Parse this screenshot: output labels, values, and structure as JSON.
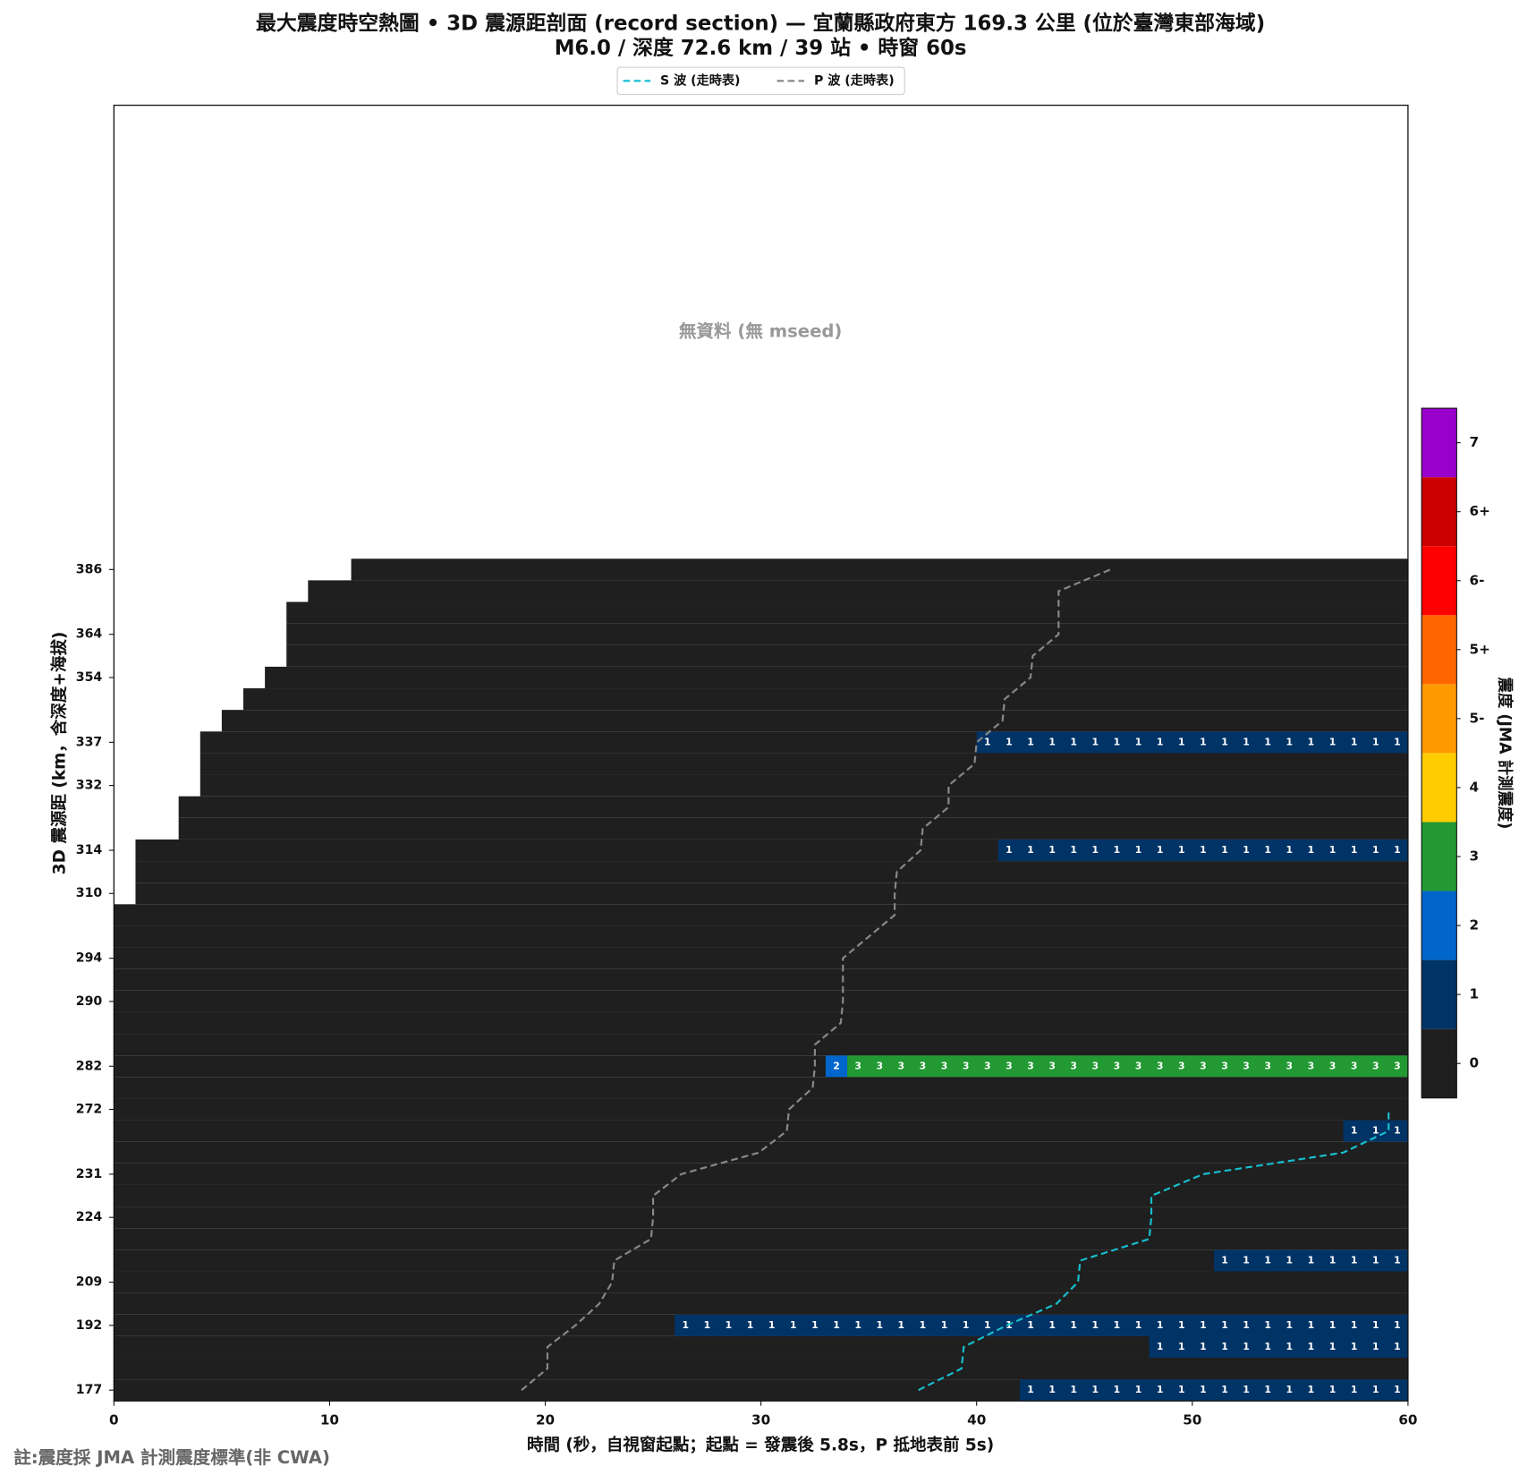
{
  "chart_data": {
    "type": "heatmap",
    "title": "最大震度時空熱圖 • 3D 震源距剖面 (record section) — 宜蘭縣政府東方  169.3  公里 (位於臺灣東部海域)",
    "subtitle": "M6.0 / 深度 72.6 km / 39 站 • 時窗 60s",
    "x_label": "時間 (秒，自視窗起點；起點 = 發震後 5.8s，P 抵地表前 5s)",
    "y_label": "3D 震源距 (km，含深度+海拔)",
    "annotation": "無資料 (無 mseed)",
    "note": "註:震度採 JMA 計測震度標準(非 CWA)",
    "xlim": [
      0,
      60
    ],
    "xticks": [
      0,
      10,
      20,
      30,
      40,
      50,
      60
    ],
    "ylim": [
      -0.5,
      59.5
    ],
    "rows": [
      {
        "label": "177",
        "start": 0,
        "runs": [
          {
            "from": 42,
            "to": 60,
            "value": 1
          }
        ]
      },
      {
        "label": null,
        "start": 0,
        "runs": []
      },
      {
        "label": null,
        "start": 0,
        "runs": [
          {
            "from": 48,
            "to": 60,
            "value": 1
          }
        ]
      },
      {
        "label": "192",
        "start": 0,
        "runs": [
          {
            "from": 26,
            "to": 60,
            "value": 1
          }
        ]
      },
      {
        "label": null,
        "start": 0,
        "runs": []
      },
      {
        "label": "209",
        "start": 0,
        "runs": []
      },
      {
        "label": null,
        "start": 0,
        "runs": [
          {
            "from": 51,
            "to": 60,
            "value": 1
          }
        ]
      },
      {
        "label": null,
        "start": 0,
        "runs": []
      },
      {
        "label": "224",
        "start": 0,
        "runs": []
      },
      {
        "label": null,
        "start": 0,
        "runs": []
      },
      {
        "label": "231",
        "start": 0,
        "runs": []
      },
      {
        "label": null,
        "start": 0,
        "runs": []
      },
      {
        "label": null,
        "start": 0,
        "runs": [
          {
            "from": 57,
            "to": 60,
            "value": 1
          }
        ]
      },
      {
        "label": "272",
        "start": 0,
        "runs": []
      },
      {
        "label": null,
        "start": 0,
        "runs": []
      },
      {
        "label": "282",
        "start": 0,
        "runs": [
          {
            "from": 33,
            "to": 34,
            "value": 2
          },
          {
            "from": 34,
            "to": 60,
            "value": 3
          }
        ]
      },
      {
        "label": null,
        "start": 0,
        "runs": []
      },
      {
        "label": null,
        "start": 0,
        "runs": []
      },
      {
        "label": "290",
        "start": 0,
        "runs": []
      },
      {
        "label": null,
        "start": 0,
        "runs": []
      },
      {
        "label": "294",
        "start": 0,
        "runs": []
      },
      {
        "label": null,
        "start": 0,
        "runs": []
      },
      {
        "label": null,
        "start": 0,
        "runs": []
      },
      {
        "label": "310",
        "start": 1,
        "runs": []
      },
      {
        "label": null,
        "start": 1,
        "runs": []
      },
      {
        "label": "314",
        "start": 1,
        "runs": [
          {
            "from": 41,
            "to": 60,
            "value": 1
          }
        ]
      },
      {
        "label": null,
        "start": 3,
        "runs": []
      },
      {
        "label": null,
        "start": 3,
        "runs": []
      },
      {
        "label": "332",
        "start": 4,
        "runs": []
      },
      {
        "label": null,
        "start": 4,
        "runs": []
      },
      {
        "label": "337",
        "start": 4,
        "runs": [
          {
            "from": 40,
            "to": 60,
            "value": 1
          }
        ]
      },
      {
        "label": null,
        "start": 5,
        "runs": []
      },
      {
        "label": null,
        "start": 6,
        "runs": []
      },
      {
        "label": "354",
        "start": 7,
        "runs": []
      },
      {
        "label": null,
        "start": 8,
        "runs": []
      },
      {
        "label": "364",
        "start": 8,
        "runs": []
      },
      {
        "label": null,
        "start": 8,
        "runs": []
      },
      {
        "label": null,
        "start": 9,
        "runs": []
      },
      {
        "label": "386",
        "start": 11,
        "runs": []
      }
    ],
    "series": [
      {
        "name": "S 波 (走時表)",
        "color": "#17becf",
        "values": [
          37.3,
          39.3,
          39.4,
          41.4,
          43.7,
          44.7,
          44.8,
          48.0,
          48.1,
          48.1,
          50.5,
          57.0,
          59.1,
          59.1,
          null,
          null,
          null,
          null,
          null,
          null,
          null,
          null,
          null,
          null,
          null,
          null,
          null,
          null,
          null,
          null,
          null,
          null,
          null,
          null,
          null,
          null,
          null,
          null,
          null
        ]
      },
      {
        "name": "P 波 (走時表)",
        "color": "#888888",
        "values": [
          18.9,
          20.1,
          20.1,
          21.4,
          22.5,
          23.1,
          23.2,
          24.9,
          25.0,
          25.0,
          26.3,
          29.9,
          31.2,
          31.3,
          32.4,
          32.5,
          32.5,
          33.7,
          33.8,
          33.8,
          33.8,
          35.0,
          36.2,
          36.2,
          36.3,
          37.4,
          37.5,
          38.7,
          38.7,
          39.9,
          40.0,
          41.2,
          41.3,
          42.5,
          42.6,
          43.8,
          43.8,
          43.8,
          46.2
        ]
      }
    ],
    "colorbar": {
      "label": "震度 (JMA 計測震度)",
      "levels": [
        "0",
        "1",
        "2",
        "3",
        "4",
        "5-",
        "5+",
        "6-",
        "6+",
        "7"
      ],
      "colors": [
        "#1f1f1f",
        "#003366",
        "#0066cc",
        "#229933",
        "#ffcc00",
        "#ff9900",
        "#ff6600",
        "#ff0000",
        "#cc0000",
        "#9900cc"
      ]
    }
  }
}
